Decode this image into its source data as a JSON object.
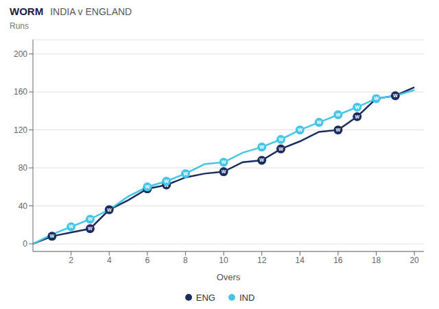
{
  "chart_data": {
    "type": "line",
    "title": "WORM",
    "subtitle": "INDIA v ENGLAND",
    "xlabel": "Overs",
    "ylabel": "Runs",
    "x": [
      0,
      1,
      2,
      3,
      4,
      5,
      6,
      7,
      8,
      9,
      10,
      11,
      12,
      13,
      14,
      15,
      16,
      17,
      18,
      19,
      20
    ],
    "series": [
      {
        "name": "ENG",
        "color": "#1b2d5e",
        "values": [
          0,
          8,
          12,
          16,
          36,
          46,
          58,
          62,
          70,
          74,
          76,
          86,
          88,
          100,
          108,
          118,
          120,
          134,
          153,
          156,
          165
        ],
        "wicket_x": [
          1,
          3,
          4,
          6,
          7,
          10,
          12,
          13,
          16,
          17,
          19
        ],
        "wicket_values": [
          8,
          16,
          36,
          58,
          62,
          76,
          88,
          100,
          120,
          134,
          156
        ]
      },
      {
        "name": "IND",
        "color": "#45c6e8",
        "values": [
          0,
          10,
          18,
          26,
          36,
          50,
          60,
          66,
          74,
          84,
          86,
          96,
          102,
          110,
          120,
          128,
          136,
          144,
          153,
          156,
          162
        ],
        "wicket_x": [
          2,
          3,
          6,
          7,
          8,
          10,
          12,
          13,
          14,
          15,
          16,
          17,
          18
        ],
        "wicket_values": [
          18,
          26,
          60,
          66,
          74,
          86,
          102,
          110,
          120,
          128,
          136,
          144,
          153
        ]
      }
    ],
    "wicket_label": "W",
    "xlim": [
      0,
      20.5
    ],
    "ylim": [
      -8,
      215
    ],
    "xticks": [
      2,
      4,
      6,
      8,
      10,
      12,
      14,
      16,
      18,
      20
    ],
    "yticks": [
      0,
      40,
      80,
      120,
      160,
      200
    ],
    "grid": true,
    "legend": "bottom"
  }
}
